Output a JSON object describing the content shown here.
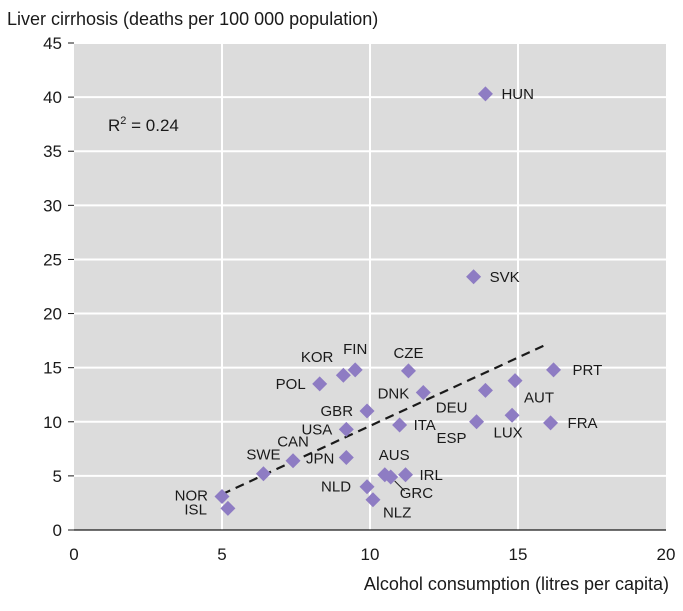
{
  "chart_data": {
    "type": "scatter",
    "ylabel": "Liver cirrhosis (deaths per 100 000 population)",
    "xlabel": "Alcohol consumption (litres per capita)",
    "xlim": [
      0,
      20
    ],
    "ylim": [
      0,
      45
    ],
    "xticks": [
      0,
      5,
      10,
      15,
      20
    ],
    "yticks": [
      0,
      5,
      10,
      15,
      20,
      25,
      30,
      35,
      40,
      45
    ],
    "grid": true,
    "marker_color": "#8e7cc3",
    "annotation": {
      "base": "R",
      "sup": "2",
      "rest": " = 0.24"
    },
    "trendline": {
      "style": "dashed",
      "x": [
        5.0,
        16.0
      ],
      "y": [
        3.3,
        17.2
      ]
    },
    "points": [
      {
        "label": "NOR",
        "x": 5.0,
        "y": 3.1
      },
      {
        "label": "ISL",
        "x": 5.2,
        "y": 2.0
      },
      {
        "label": "SWE",
        "x": 6.4,
        "y": 5.2
      },
      {
        "label": "CAN",
        "x": 7.4,
        "y": 6.4
      },
      {
        "label": "POL",
        "x": 8.3,
        "y": 13.5
      },
      {
        "label": "KOR",
        "x": 9.1,
        "y": 14.3
      },
      {
        "label": "FIN",
        "x": 9.5,
        "y": 14.8
      },
      {
        "label": "USA",
        "x": 9.2,
        "y": 9.3
      },
      {
        "label": "JPN",
        "x": 9.2,
        "y": 6.7
      },
      {
        "label": "GBR",
        "x": 9.9,
        "y": 11.0
      },
      {
        "label": "NLD",
        "x": 9.9,
        "y": 4.0
      },
      {
        "label": "NLZ",
        "x": 10.1,
        "y": 2.8
      },
      {
        "label": "AUS",
        "x": 10.5,
        "y": 5.1
      },
      {
        "label": "GRC",
        "x": 10.7,
        "y": 4.9
      },
      {
        "label": "ITA",
        "x": 11.0,
        "y": 9.7
      },
      {
        "label": "IRL",
        "x": 11.2,
        "y": 5.1
      },
      {
        "label": "CZE",
        "x": 11.3,
        "y": 14.7
      },
      {
        "label": "DNK",
        "x": 11.8,
        "y": 12.7
      },
      {
        "label": "ESP",
        "x": 13.6,
        "y": 10.0
      },
      {
        "label": "SVK",
        "x": 13.5,
        "y": 23.4
      },
      {
        "label": "DEU",
        "x": 13.9,
        "y": 12.9
      },
      {
        "label": "HUN",
        "x": 13.9,
        "y": 40.3
      },
      {
        "label": "LUX",
        "x": 14.8,
        "y": 10.6
      },
      {
        "label": "AUT",
        "x": 14.9,
        "y": 13.8
      },
      {
        "label": "FRA",
        "x": 16.1,
        "y": 9.9
      },
      {
        "label": "PRT",
        "x": 16.2,
        "y": 14.8
      }
    ]
  }
}
